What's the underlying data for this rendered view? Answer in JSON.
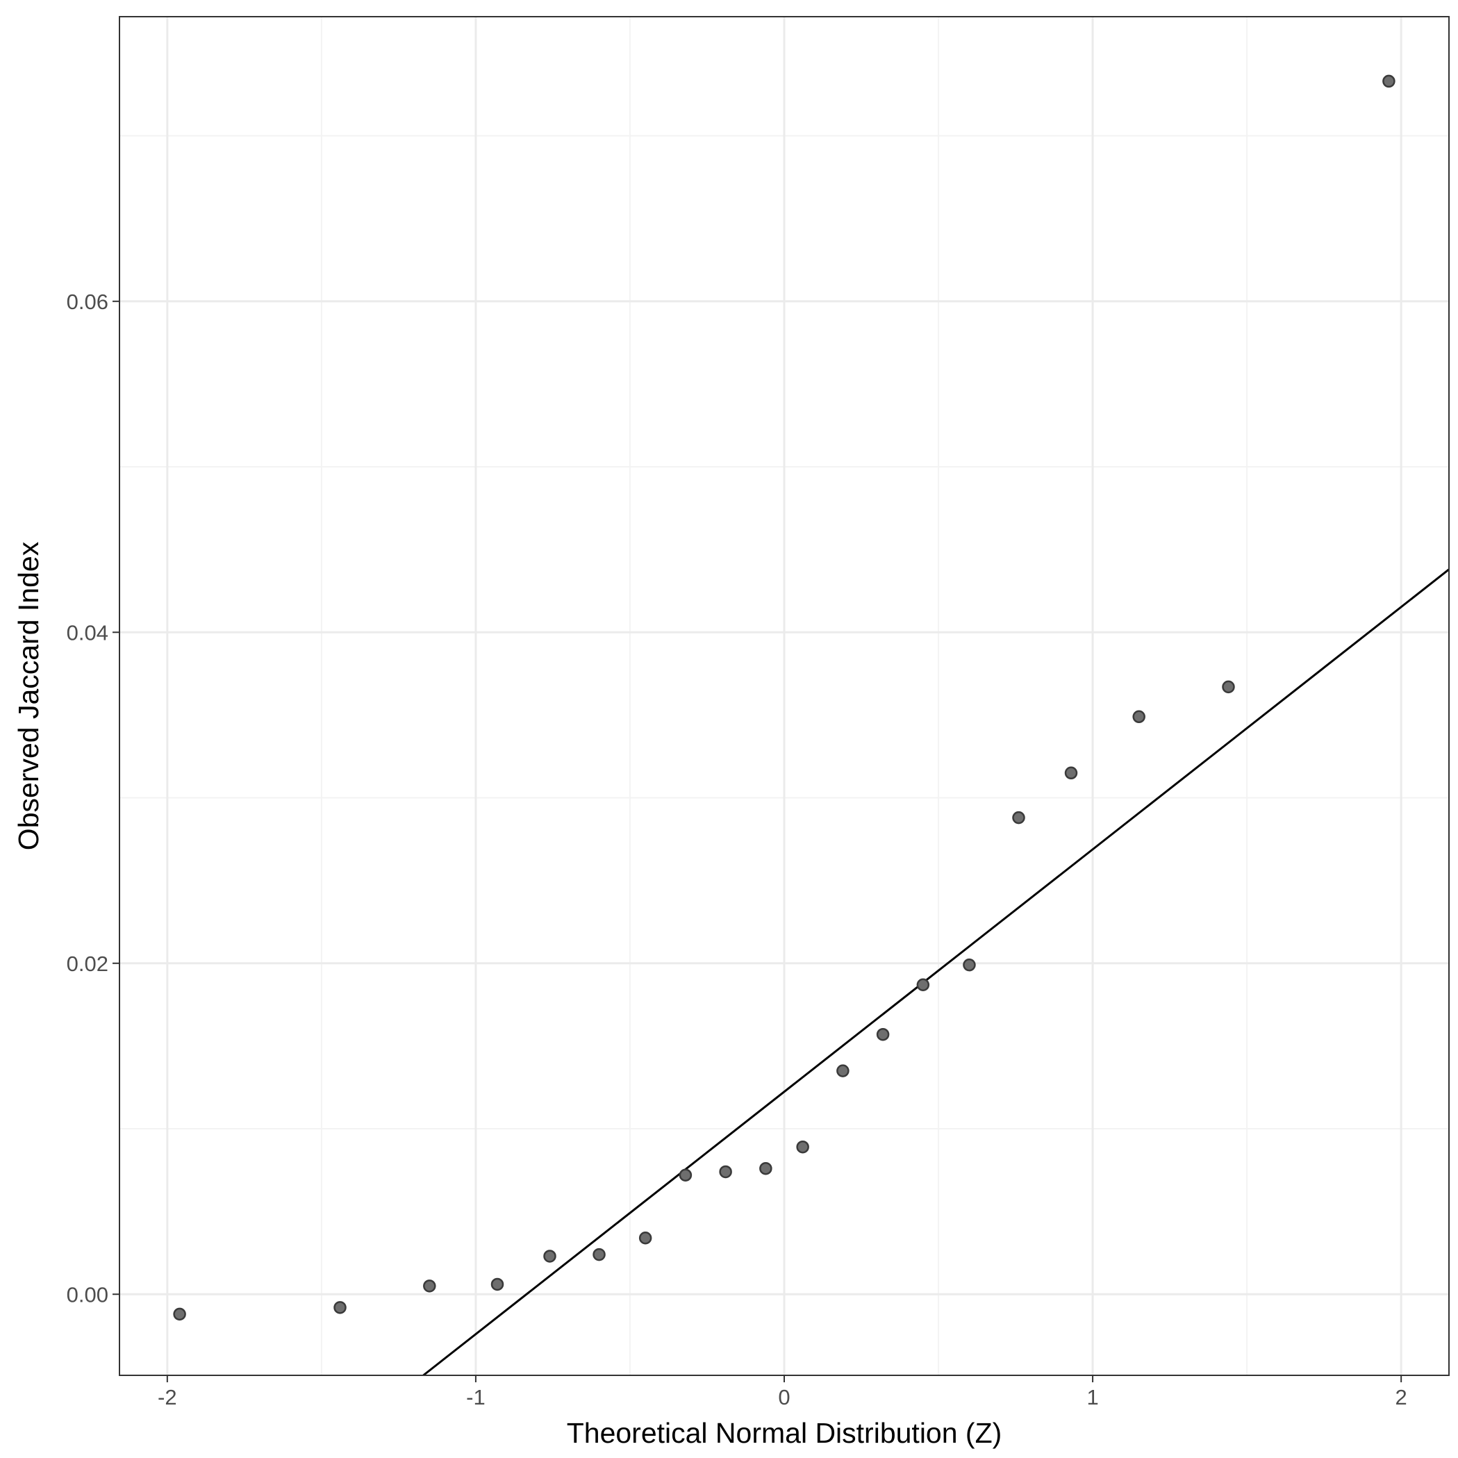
{
  "chart_data": {
    "type": "scatter",
    "title": "",
    "xlabel": "Theoretical Normal Distribution (Z)",
    "ylabel": "Observed Jaccard Index",
    "xlim": [
      -2.155,
      2.155
    ],
    "ylim": [
      -0.0049,
      0.0772
    ],
    "x_ticks": [
      -2,
      -1,
      0,
      1,
      2
    ],
    "x_tick_labels": [
      "-2",
      "-1",
      "0",
      "1",
      "2"
    ],
    "y_ticks": [
      0.0,
      0.02,
      0.04,
      0.06
    ],
    "y_tick_labels": [
      "0.00",
      "0.02",
      "0.04",
      "0.06"
    ],
    "grid": true,
    "legend": "none",
    "colors": {
      "point_fill": "#6e6e6e",
      "point_stroke": "#3a3a3a",
      "line": "#000000",
      "grid_major": "#ebebeb",
      "grid_minor": "#f3f3f3",
      "border": "#333333"
    },
    "series": [
      {
        "type": "scatter",
        "x": [
          -1.96,
          -1.44,
          -1.15,
          -0.93,
          -0.76,
          -0.6,
          -0.45,
          -0.32,
          -0.19,
          -0.06,
          0.06,
          0.19,
          0.32,
          0.45,
          0.6,
          0.76,
          0.93,
          1.15,
          1.44,
          1.96
        ],
        "y": [
          -0.0012,
          -0.0008,
          0.0005,
          0.0006,
          0.0023,
          0.0024,
          0.0034,
          0.0072,
          0.0074,
          0.0076,
          0.0089,
          0.0135,
          0.0157,
          0.0187,
          0.0199,
          0.0288,
          0.0315,
          0.0349,
          0.0367,
          0.0733
        ]
      },
      {
        "type": "line",
        "x": [
          -1.17,
          2.155
        ],
        "y": [
          -0.0049,
          0.0438
        ]
      }
    ]
  }
}
